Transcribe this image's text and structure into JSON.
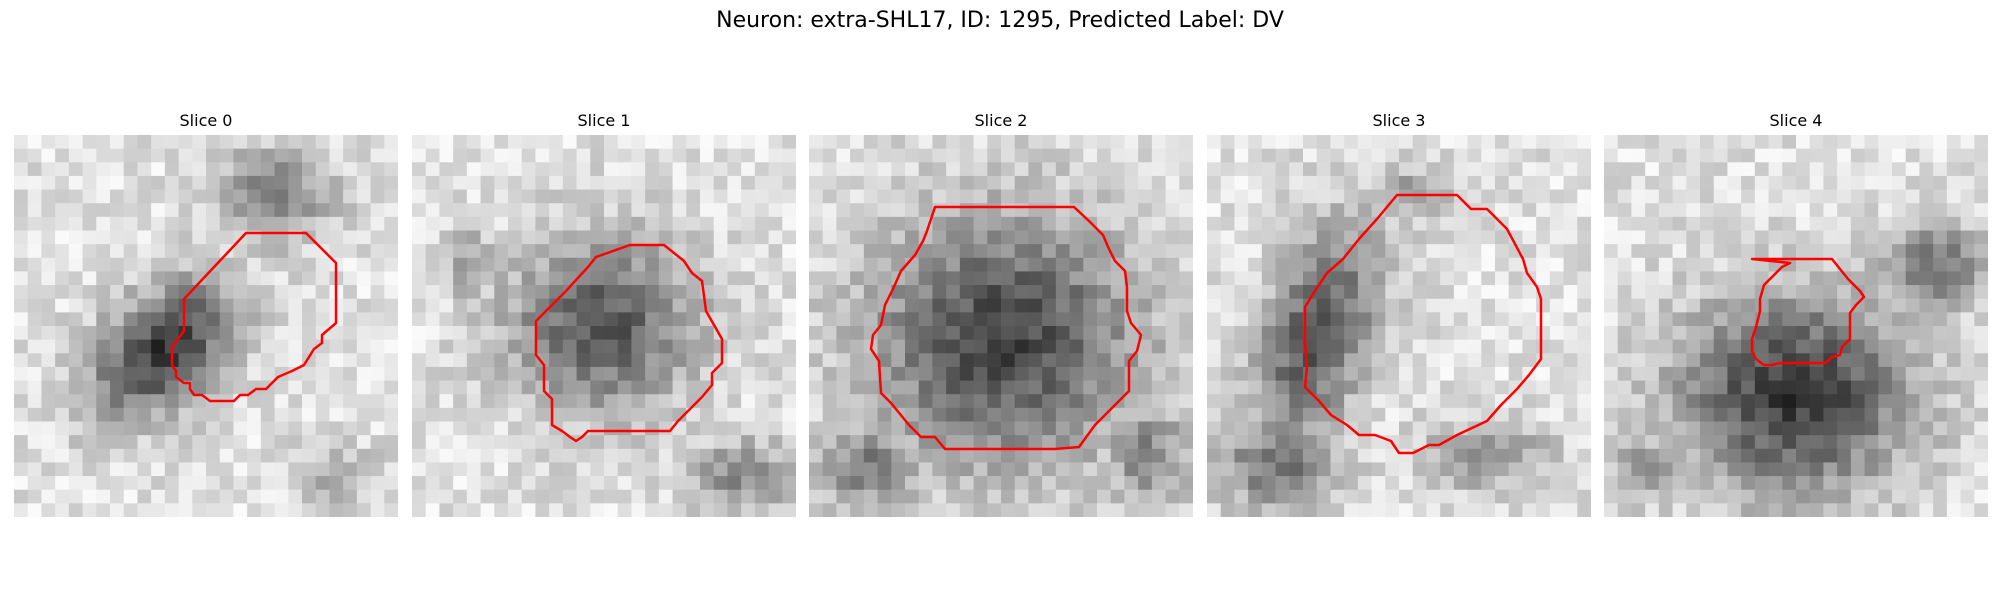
{
  "figure": {
    "title": "Neuron: extra-SHL17, ID: 1295, Predicted Label: DV",
    "panels": [
      {
        "title": "Slice 0"
      },
      {
        "title": "Slice 1"
      },
      {
        "title": "Slice 2"
      },
      {
        "title": "Slice 3"
      },
      {
        "title": "Slice 4"
      }
    ]
  },
  "colors": {
    "contour": "#ff0000",
    "background": "#ffffff"
  }
}
